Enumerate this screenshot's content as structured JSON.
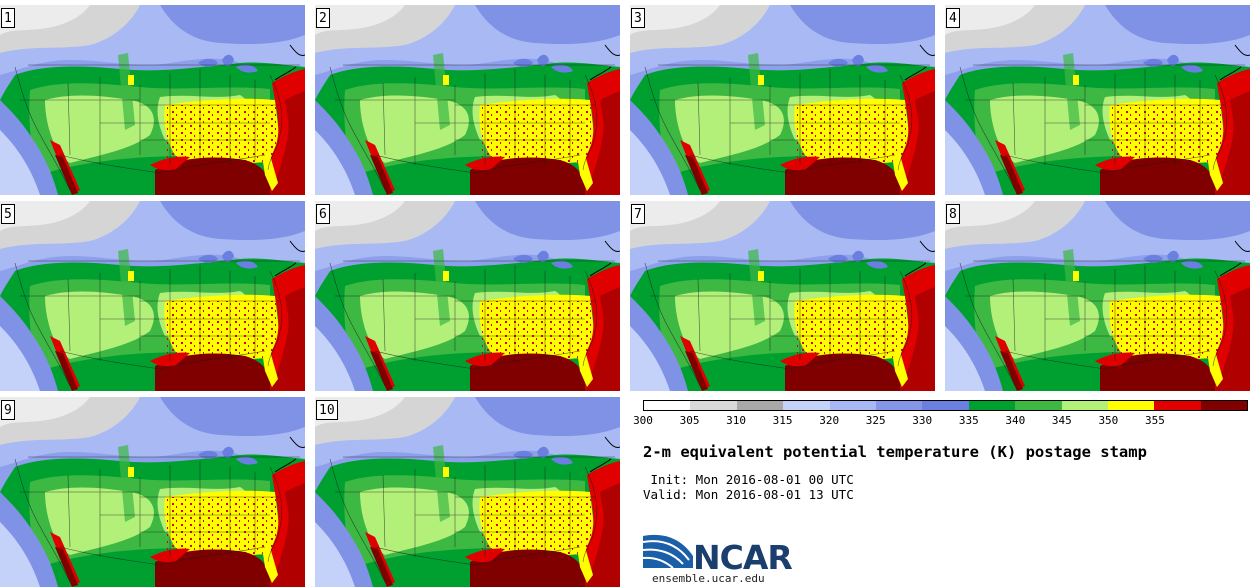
{
  "panels": [
    "1",
    "2",
    "3",
    "4",
    "5",
    "6",
    "7",
    "8",
    "9",
    "10"
  ],
  "colorbar": {
    "colors": [
      "#ffffff",
      "#d9d9d9",
      "#a8a8a8",
      "#c4d2fa",
      "#a7b8f2",
      "#8596e8",
      "#6b7fe0",
      "#00a030",
      "#3cb843",
      "#b2f07a",
      "#ffff00",
      "#e00000",
      "#800000"
    ],
    "tick_labels": [
      "300",
      "305",
      "310",
      "315",
      "320",
      "325",
      "330",
      "335",
      "340",
      "345",
      "350",
      "355"
    ]
  },
  "title": "2-m equivalent potential temperature (K) postage stamp",
  "init_line": " Init: Mon 2016-08-01 00 UTC",
  "valid_line": "Valid: Mon 2016-08-01 13 UTC",
  "logo": {
    "name": "NCAR",
    "url": "ensemble.ucar.edu"
  }
}
